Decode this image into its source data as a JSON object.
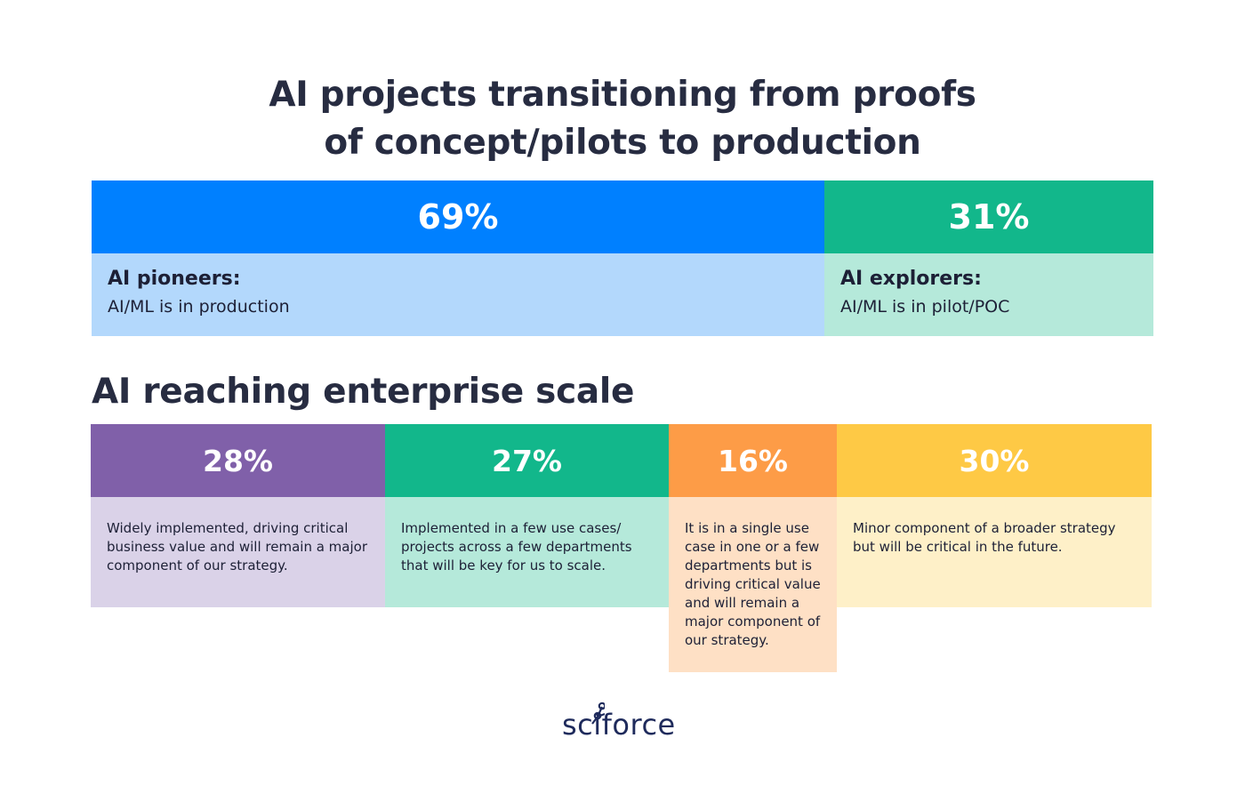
{
  "titles": {
    "line1": "AI projects transitioning from proofs",
    "line2": "of concept/pilots to production",
    "section2": "AI reaching enterprise scale"
  },
  "chart_data": [
    {
      "type": "bar",
      "orientation": "stacked-horizontal",
      "title": "AI projects transitioning from proofs of concept/pilots to production",
      "segments": [
        {
          "value": 69,
          "value_label": "69%",
          "label": "AI pioneers:",
          "description": "AI/ML is in production",
          "color": "#0080ff",
          "light_color": "#b3d8fc"
        },
        {
          "value": 31,
          "value_label": "31%",
          "label": "AI explorers:",
          "description": "AI/ML is in pilot/POC",
          "color": "#12b78b",
          "light_color": "#b5e9da"
        }
      ]
    },
    {
      "type": "bar",
      "orientation": "stacked-horizontal",
      "title": "AI reaching enterprise scale",
      "segments": [
        {
          "value": 28,
          "value_label": "28%",
          "description": "Widely implemented, driving critical business value and will remain a major component of our strategy.",
          "color": "#8060a9",
          "light_color": "#dad2e8"
        },
        {
          "value": 27,
          "value_label": "27%",
          "description": "Implemented in a few use cases/ projects across a few departments that will be key for us to scale.",
          "color": "#12b78b",
          "light_color": "#b5e9da"
        },
        {
          "value": 16,
          "value_label": "16%",
          "description": "It is in a single use case in one or a few departments but is driving critical value and will remain a major component of our strategy.",
          "color": "#fd9c47",
          "light_color": "#fee0c5"
        },
        {
          "value": 30,
          "value_label": "30%",
          "description": "Minor component of a broader strategy but will be critical in the future.",
          "color": "#fec945",
          "light_color": "#fef0c8"
        }
      ]
    }
  ],
  "brand": {
    "name": "sciforce",
    "color": "#1f2b5c"
  }
}
